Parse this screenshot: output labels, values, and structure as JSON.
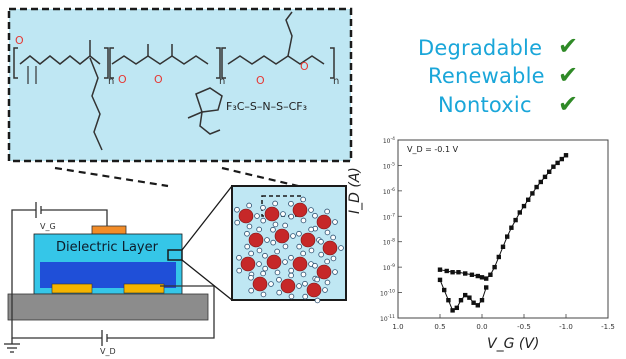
{
  "properties": [
    {
      "label": "Degradable",
      "mark": "✔"
    },
    {
      "label": "Renewable",
      "mark": "✔"
    },
    {
      "label": "Nontoxic",
      "mark": "✔"
    }
  ],
  "colors": {
    "property_text": "#1aa6d9",
    "check": "#2f8a27",
    "inset_fill": "#bfe7f3",
    "dielectric": "#35c6e8",
    "channel": "#1f4fd8",
    "electrode": "#f4b400",
    "gate": "#f28c28",
    "substrate": "#8c8c8c",
    "particle": "#c62828"
  },
  "molecule": {
    "atom_O": "O",
    "n1": "n",
    "n2": "n",
    "n3": "n",
    "ionic_liquid": "F₃C–S–N–S–CF₃"
  },
  "device": {
    "dielectric_label": "Dielectric Layer",
    "vg_label": "V_G",
    "vd_label": "V_D"
  },
  "chart_data": {
    "type": "scatter",
    "annotation": "V_D = -0.1 V",
    "xlabel": "V_G (V)",
    "ylabel": "I_D (A)",
    "x_ticks": [
      "1.0",
      "0.5",
      "0.0",
      "-0.5",
      "-1.0",
      "-1.5"
    ],
    "xlim": [
      1.0,
      -1.5
    ],
    "y_log": true,
    "ylim": [
      1e-11,
      0.0001
    ],
    "y_ticks_exp": [
      -11,
      -10,
      -9,
      -8,
      -7,
      -6,
      -5,
      -4
    ],
    "series": [
      {
        "x": [
          0.5,
          0.42,
          0.35,
          0.28,
          0.2,
          0.12,
          0.05,
          0.0,
          -0.05,
          -0.1,
          -0.15,
          -0.2,
          -0.25,
          -0.3,
          -0.35,
          -0.4,
          -0.45,
          -0.5,
          -0.55,
          -0.6,
          -0.65,
          -0.7,
          -0.75,
          -0.8,
          -0.85,
          -0.9,
          -0.95,
          -1.0
        ],
        "y_exp": [
          -9.1,
          -9.15,
          -9.2,
          -9.2,
          -9.25,
          -9.3,
          -9.35,
          -9.4,
          -9.45,
          -9.3,
          -9.0,
          -8.6,
          -8.2,
          -7.8,
          -7.45,
          -7.15,
          -6.85,
          -6.6,
          -6.35,
          -6.1,
          -5.85,
          -5.65,
          -5.45,
          -5.25,
          -5.05,
          -4.9,
          -4.75,
          -4.6
        ]
      },
      {
        "x": [
          0.5,
          0.45,
          0.4,
          0.35,
          0.3,
          0.25,
          0.2,
          0.15,
          0.1,
          0.05,
          0.0,
          -0.05
        ],
        "y_exp": [
          -9.5,
          -9.9,
          -10.3,
          -10.7,
          -10.6,
          -10.3,
          -10.1,
          -10.2,
          -10.4,
          -10.5,
          -10.3,
          -9.8
        ]
      }
    ]
  }
}
